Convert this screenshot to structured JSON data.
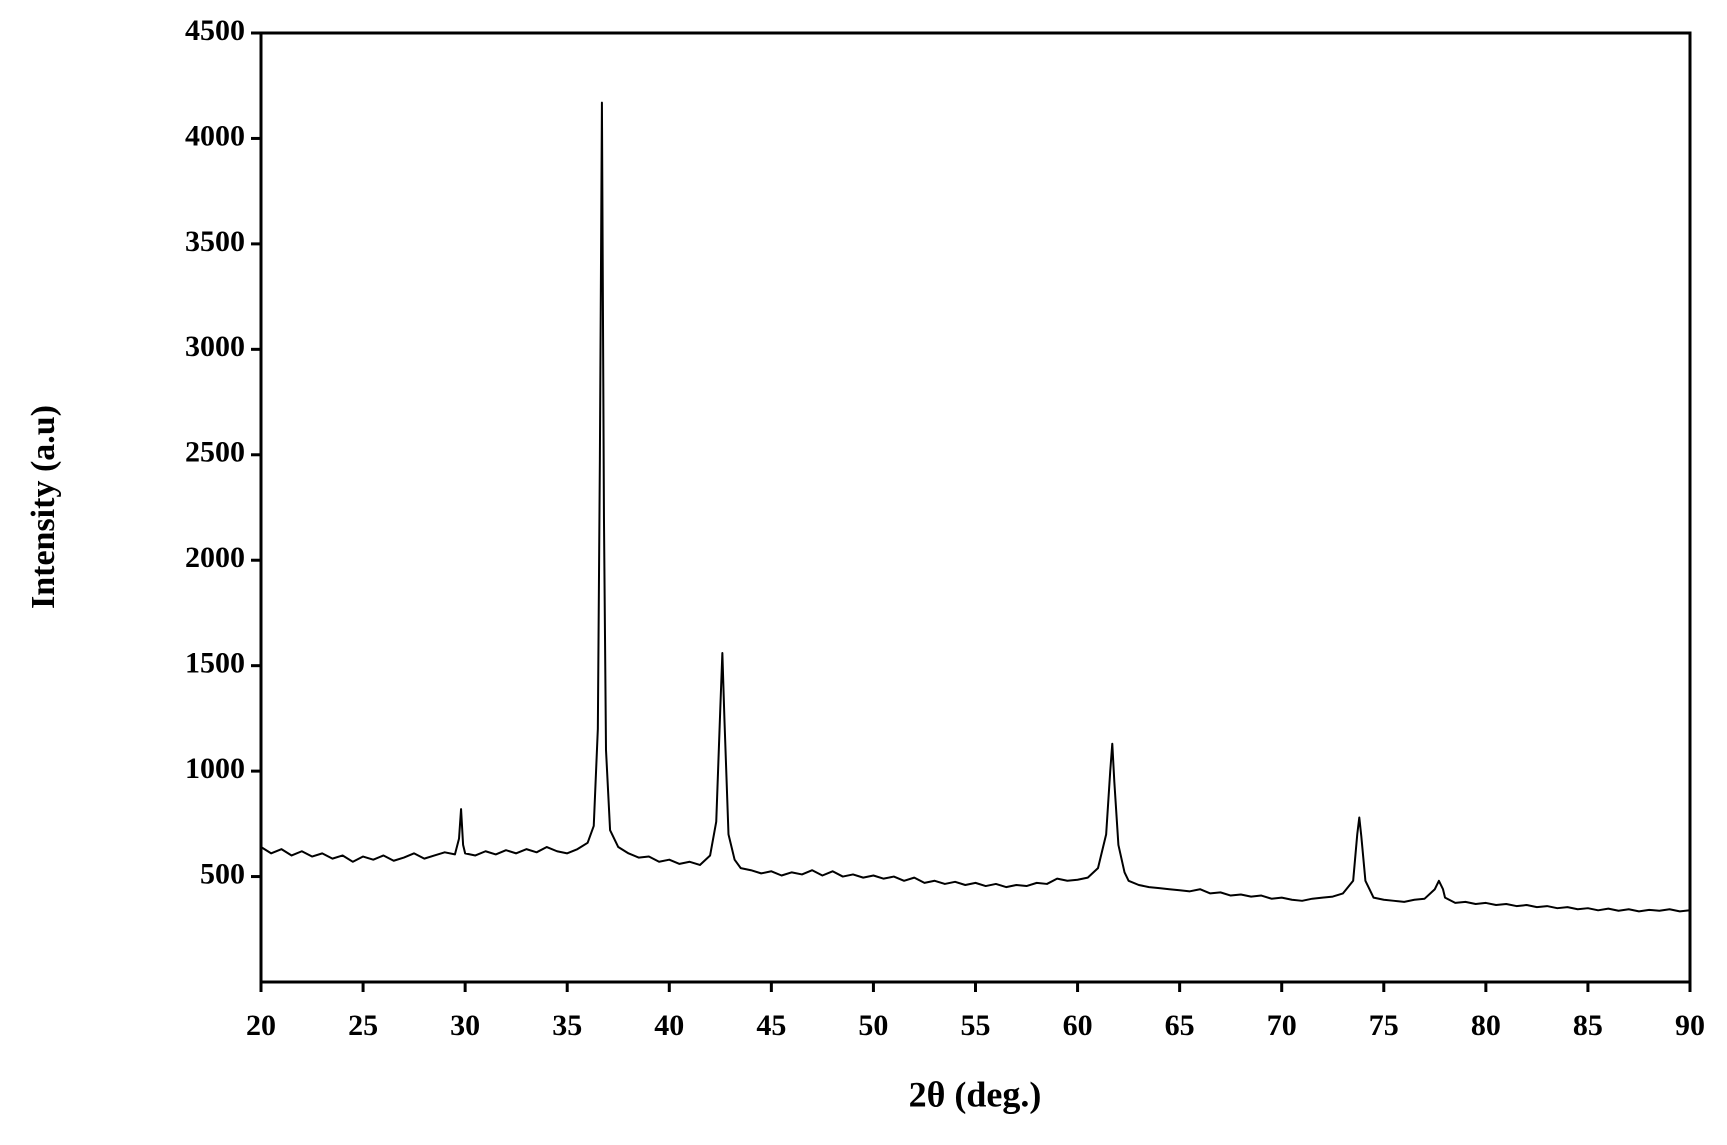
{
  "chart_data": {
    "type": "line",
    "xlabel": "2θ (deg.)",
    "ylabel": "Intensity (a.u)",
    "color": "#000000",
    "xlim": [
      20,
      90
    ],
    "xticks": [
      20,
      25,
      30,
      35,
      40,
      45,
      50,
      55,
      60,
      65,
      70,
      75,
      80,
      85,
      90
    ],
    "ylim": [
      0,
      4500
    ],
    "yticks": [
      500,
      1000,
      1500,
      2000,
      2500,
      3000,
      3500,
      4000,
      4500
    ],
    "x": [
      20,
      20.5,
      21,
      21.5,
      22,
      22.5,
      23,
      23.5,
      24,
      24.5,
      25,
      25.5,
      26,
      26.5,
      27,
      27.5,
      28,
      28.5,
      29,
      29.5,
      29.7,
      29.8,
      29.9,
      30,
      30.5,
      31,
      31.5,
      32,
      32.5,
      33,
      33.5,
      34,
      34.5,
      35,
      35.5,
      36,
      36.3,
      36.5,
      36.6,
      36.7,
      36.8,
      36.9,
      37.1,
      37.5,
      38,
      38.5,
      39,
      39.5,
      40,
      40.5,
      41,
      41.5,
      42,
      42.3,
      42.5,
      42.6,
      42.7,
      42.9,
      43.2,
      43.5,
      44,
      44.5,
      45,
      45.5,
      46,
      46.5,
      47,
      47.5,
      48,
      48.5,
      49,
      49.5,
      50,
      50.5,
      51,
      51.5,
      52,
      52.5,
      53,
      53.5,
      54,
      54.5,
      55,
      55.5,
      56,
      56.5,
      57,
      57.5,
      58,
      58.5,
      59,
      59.5,
      60,
      60.5,
      61,
      61.4,
      61.6,
      61.7,
      61.8,
      62,
      62.3,
      62.5,
      63,
      63.5,
      64,
      64.5,
      65,
      65.5,
      66,
      66.5,
      67,
      67.5,
      68,
      68.5,
      69,
      69.5,
      70,
      70.5,
      71,
      71.5,
      72,
      72.5,
      73,
      73.5,
      73.7,
      73.8,
      73.9,
      74.1,
      74.5,
      75,
      75.5,
      76,
      76.5,
      77,
      77.5,
      77.7,
      77.9,
      78,
      78.5,
      79,
      79.5,
      80,
      80.5,
      81,
      81.5,
      82,
      82.5,
      83,
      83.5,
      84,
      84.5,
      85,
      85.5,
      86,
      86.5,
      87,
      87.5,
      88,
      88.5,
      89,
      89.5,
      90
    ],
    "values": [
      640,
      610,
      630,
      600,
      620,
      595,
      610,
      585,
      600,
      570,
      595,
      580,
      600,
      575,
      590,
      610,
      585,
      600,
      615,
      605,
      680,
      820,
      650,
      610,
      600,
      620,
      605,
      625,
      610,
      630,
      615,
      640,
      620,
      610,
      630,
      660,
      740,
      1200,
      2480,
      4170,
      2200,
      1100,
      720,
      640,
      610,
      590,
      595,
      570,
      580,
      560,
      570,
      555,
      600,
      760,
      1300,
      1560,
      1250,
      700,
      580,
      540,
      530,
      515,
      525,
      505,
      520,
      510,
      530,
      505,
      525,
      500,
      510,
      495,
      505,
      490,
      500,
      480,
      495,
      470,
      480,
      465,
      475,
      460,
      470,
      455,
      465,
      450,
      460,
      455,
      470,
      465,
      490,
      480,
      485,
      495,
      540,
      700,
      1000,
      1130,
      950,
      650,
      520,
      480,
      460,
      450,
      445,
      440,
      435,
      430,
      440,
      420,
      425,
      410,
      415,
      405,
      410,
      395,
      400,
      390,
      385,
      395,
      400,
      405,
      420,
      480,
      700,
      780,
      690,
      480,
      400,
      390,
      385,
      380,
      390,
      395,
      440,
      480,
      440,
      400,
      375,
      380,
      370,
      375,
      365,
      370,
      360,
      365,
      355,
      360,
      350,
      355,
      345,
      350,
      340,
      348,
      338,
      345,
      335,
      342,
      338,
      345,
      335,
      340
    ]
  }
}
